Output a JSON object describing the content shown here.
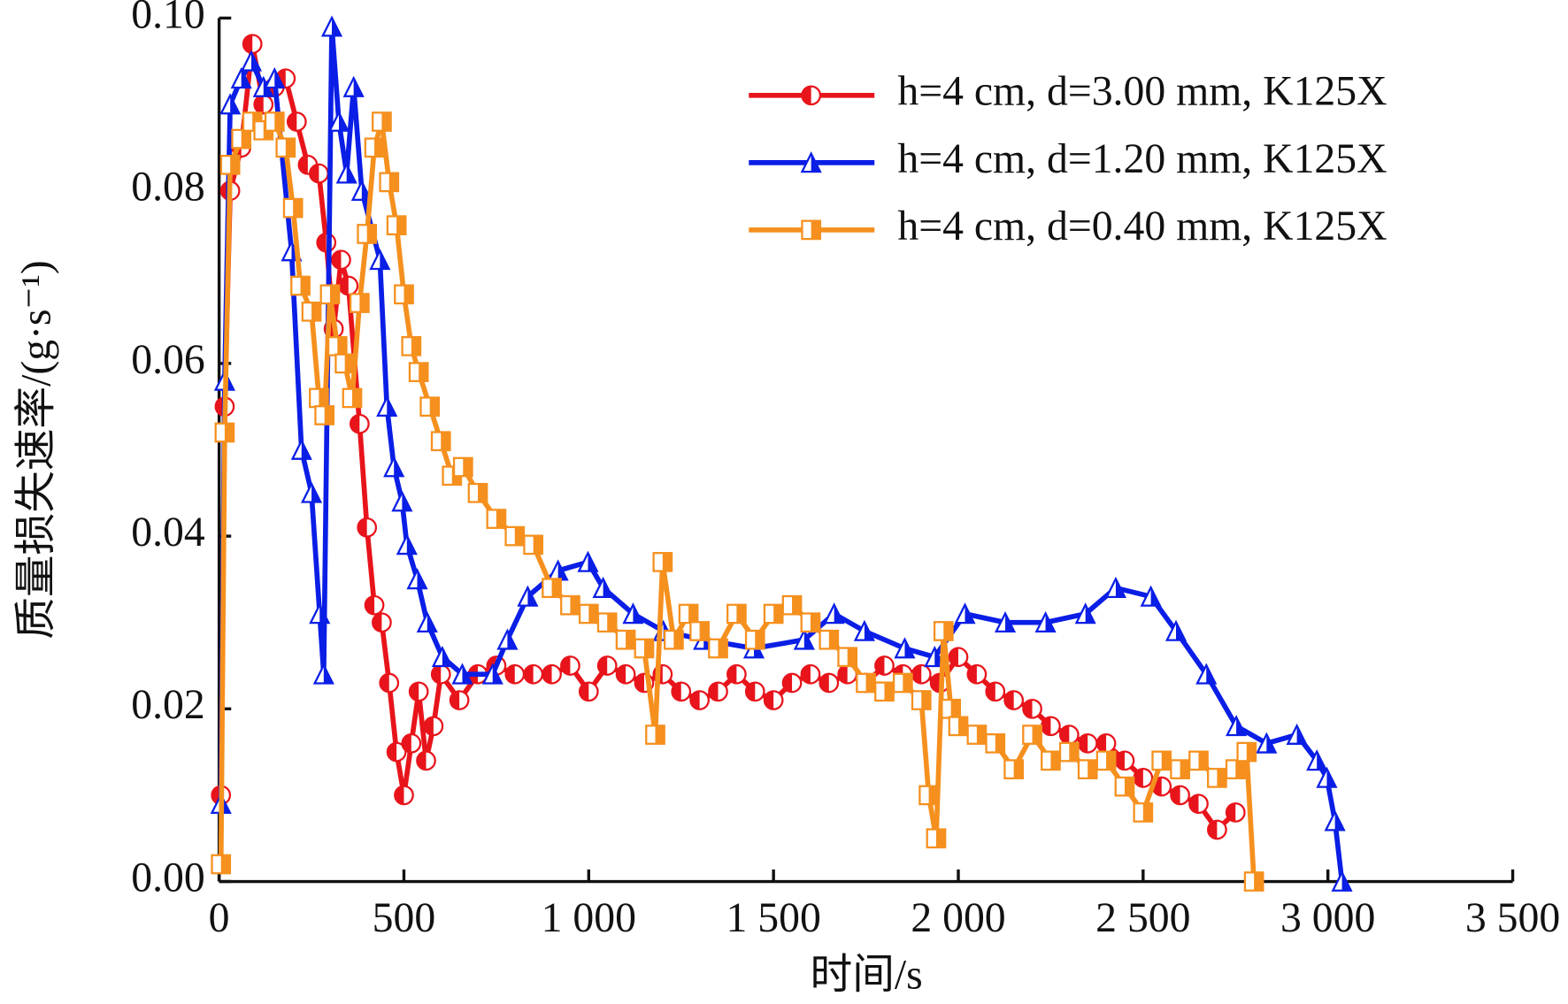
{
  "chart_data": {
    "type": "line",
    "x_label": "时间/s",
    "y_label": "质量损失速率/(g·s⁻¹)",
    "xlim": [
      0,
      3500
    ],
    "ylim": [
      0,
      0.1
    ],
    "xticks": [
      0,
      500,
      {
        "value": 1000,
        "label": "1 000"
      },
      {
        "value": 1500,
        "label": "1 500"
      },
      {
        "value": 2000,
        "label": "2 000"
      },
      {
        "value": 2500,
        "label": "2 500"
      },
      {
        "value": 3000,
        "label": "3 000"
      },
      {
        "value": 3500,
        "label": "3 500"
      }
    ],
    "yticks": [
      {
        "value": 0,
        "label": "0.00"
      },
      {
        "value": 0.02,
        "label": "0.02"
      },
      {
        "value": 0.04,
        "label": "0.04"
      },
      {
        "value": 0.06,
        "label": "0.06"
      },
      {
        "value": 0.08,
        "label": "0.08"
      },
      {
        "value": 0.1,
        "label": "0.10"
      }
    ],
    "legend": "upper right",
    "series": [
      {
        "name": "h=4 cm, d=3.00 mm, K125X",
        "color": "#e8141b",
        "marker": "circle",
        "x": [
          5,
          15,
          30,
          60,
          90,
          120,
          150,
          180,
          210,
          240,
          270,
          290,
          310,
          330,
          350,
          380,
          400,
          420,
          440,
          460,
          480,
          500,
          520,
          540,
          560,
          580,
          600,
          650,
          700,
          750,
          800,
          850,
          900,
          950,
          1000,
          1050,
          1100,
          1150,
          1200,
          1250,
          1300,
          1350,
          1400,
          1450,
          1500,
          1550,
          1600,
          1650,
          1700,
          1750,
          1800,
          1850,
          1900,
          1950,
          2000,
          2050,
          2100,
          2150,
          2200,
          2250,
          2300,
          2350,
          2400,
          2450,
          2500,
          2550,
          2600,
          2650,
          2700,
          2750
        ],
        "values": [
          0.01,
          0.055,
          0.08,
          0.085,
          0.097,
          0.09,
          0.092,
          0.093,
          0.088,
          0.083,
          0.082,
          0.074,
          0.064,
          0.072,
          0.069,
          0.053,
          0.041,
          0.032,
          0.03,
          0.023,
          0.015,
          0.01,
          0.016,
          0.022,
          0.014,
          0.018,
          0.024,
          0.021,
          0.024,
          0.025,
          0.024,
          0.024,
          0.024,
          0.025,
          0.022,
          0.025,
          0.024,
          0.023,
          0.024,
          0.022,
          0.021,
          0.022,
          0.024,
          0.022,
          0.021,
          0.023,
          0.024,
          0.023,
          0.024,
          0.023,
          0.025,
          0.024,
          0.024,
          0.023,
          0.026,
          0.024,
          0.022,
          0.021,
          0.02,
          0.018,
          0.017,
          0.016,
          0.016,
          0.014,
          0.012,
          0.011,
          0.01,
          0.009,
          0.006,
          0.008
        ]
      },
      {
        "name": "h=4 cm, d=1.20 mm, K125X",
        "color": "#0a1ee6",
        "marker": "triangle",
        "x": [
          5,
          15,
          30,
          60,
          87,
          120,
          150,
          196,
          223,
          250,
          272,
          283,
          305,
          324,
          345,
          364,
          386,
          435,
          454,
          473,
          495,
          508,
          536,
          563,
          604,
          658,
          740,
          780,
          835,
          917,
          998,
          1039,
          1120,
          1202,
          1311,
          1447,
          1583,
          1664,
          1746,
          1855,
          1936,
          2018,
          2127,
          2236,
          2344,
          2426,
          2521,
          2589,
          2671,
          2752,
          2834,
          2916,
          2970,
          2997,
          3019,
          3038
        ],
        "values": [
          0.009,
          0.058,
          0.09,
          0.093,
          0.095,
          0.092,
          0.093,
          0.073,
          0.05,
          0.045,
          0.031,
          0.024,
          0.099,
          0.088,
          0.082,
          0.092,
          0.08,
          0.072,
          0.055,
          0.048,
          0.044,
          0.039,
          0.035,
          0.03,
          0.026,
          0.024,
          0.024,
          0.028,
          0.033,
          0.036,
          0.037,
          0.034,
          0.031,
          0.029,
          0.028,
          0.027,
          0.028,
          0.031,
          0.029,
          0.027,
          0.026,
          0.031,
          0.03,
          0.03,
          0.031,
          0.034,
          0.033,
          0.029,
          0.024,
          0.018,
          0.016,
          0.017,
          0.014,
          0.012,
          0.007,
          0
        ]
      },
      {
        "name": "h=4 cm, d=0.40 mm, K125X",
        "color": "#f5901e",
        "marker": "square",
        "x": [
          5,
          15,
          30,
          60,
          90,
          120,
          150,
          180,
          200,
          220,
          250,
          270,
          285,
          300,
          320,
          340,
          360,
          380,
          400,
          420,
          440,
          460,
          480,
          500,
          520,
          540,
          570,
          600,
          630,
          660,
          700,
          750,
          800,
          850,
          900,
          950,
          1000,
          1050,
          1100,
          1150,
          1180,
          1200,
          1230,
          1270,
          1300,
          1350,
          1400,
          1450,
          1500,
          1550,
          1600,
          1650,
          1700,
          1750,
          1800,
          1850,
          1900,
          1920,
          1940,
          1960,
          1980,
          2000,
          2050,
          2100,
          2150,
          2200,
          2250,
          2300,
          2350,
          2400,
          2450,
          2500,
          2550,
          2600,
          2650,
          2700,
          2750,
          2780,
          2800
        ],
        "values": [
          0.002,
          0.052,
          0.083,
          0.086,
          0.088,
          0.087,
          0.088,
          0.085,
          0.078,
          0.069,
          0.066,
          0.056,
          0.054,
          0.068,
          0.062,
          0.06,
          0.056,
          0.067,
          0.075,
          0.085,
          0.088,
          0.081,
          0.076,
          0.068,
          0.062,
          0.059,
          0.055,
          0.051,
          0.047,
          0.048,
          0.045,
          0.042,
          0.04,
          0.039,
          0.034,
          0.032,
          0.031,
          0.03,
          0.028,
          0.027,
          0.017,
          0.037,
          0.028,
          0.031,
          0.029,
          0.027,
          0.031,
          0.028,
          0.031,
          0.032,
          0.03,
          0.028,
          0.026,
          0.023,
          0.022,
          0.023,
          0.021,
          0.01,
          0.005,
          0.029,
          0.02,
          0.018,
          0.017,
          0.016,
          0.013,
          0.017,
          0.014,
          0.015,
          0.013,
          0.014,
          0.011,
          0.008,
          0.014,
          0.013,
          0.014,
          0.012,
          0.013,
          0.015,
          0
        ]
      }
    ]
  }
}
